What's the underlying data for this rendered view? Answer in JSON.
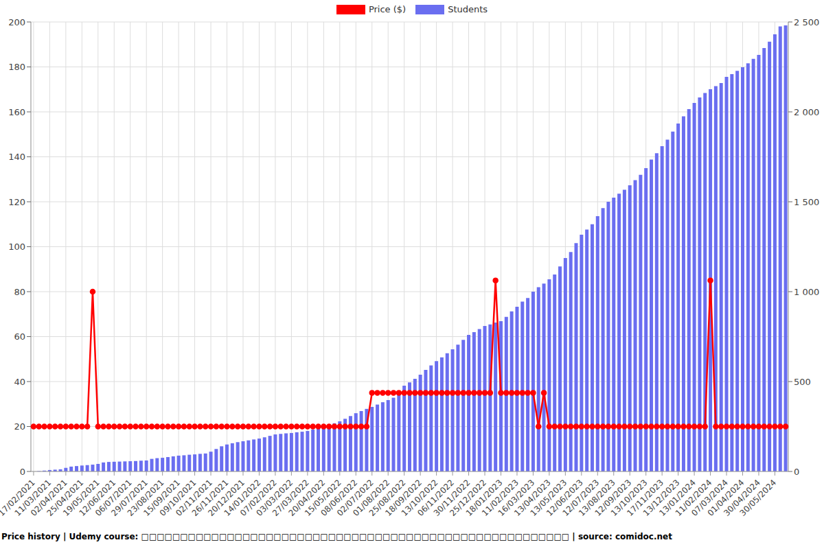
{
  "chart_data": {
    "type": "bar",
    "title": "Price history | Udemy course: □□□□□□□□□□□□□□□□□□□□□□□□□□□□□□□□□□□□□□□□□□□□□□□□□□□□□□□ | source: comidoc.net",
    "categories": [
      "17/02/2021",
      null,
      null,
      "11/03/2021",
      null,
      null,
      "02/04/2021",
      null,
      null,
      "25/04/2021",
      null,
      null,
      "19/05/2021",
      null,
      null,
      "12/06/2021",
      null,
      null,
      "06/07/2021",
      null,
      null,
      "29/07/2021",
      null,
      null,
      "23/08/2021",
      null,
      null,
      "15/09/2021",
      null,
      null,
      "09/10/2021",
      null,
      null,
      "02/11/2021",
      null,
      null,
      "26/11/2021",
      null,
      null,
      "20/12/2021",
      null,
      null,
      "14/01/2022",
      null,
      null,
      "07/02/2022",
      null,
      null,
      "03/03/2022",
      null,
      null,
      "27/03/2022",
      null,
      null,
      "20/04/2022",
      null,
      null,
      "15/05/2022",
      null,
      null,
      "08/06/2022",
      null,
      null,
      "02/07/2022",
      null,
      null,
      "01/08/2022",
      null,
      null,
      "25/08/2022",
      null,
      null,
      "18/09/2022",
      null,
      null,
      "13/10/2022",
      null,
      null,
      "06/11/2022",
      null,
      null,
      "30/11/2022",
      null,
      null,
      "25/12/2022",
      null,
      null,
      "18/01/2023",
      null,
      null,
      "11/02/2023",
      null,
      null,
      "16/03/2023",
      null,
      null,
      "13/04/2023",
      null,
      null,
      "13/05/2023",
      null,
      null,
      "12/06/2023",
      null,
      null,
      "12/07/2023",
      null,
      null,
      "13/08/2023",
      null,
      null,
      "12/09/2023",
      null,
      null,
      "13/10/2023",
      null,
      null,
      "17/11/2023",
      null,
      null,
      "13/12/2023",
      null,
      null,
      "13/01/2024",
      null,
      null,
      "11/02/2024",
      null,
      null,
      "07/03/2024",
      null,
      null,
      "01/04/2024",
      null,
      null,
      "30/04/2024",
      null,
      null,
      "30/05/2024",
      null,
      null
    ],
    "series": [
      {
        "name": "Price ($)",
        "type": "line",
        "color": "#ff0000",
        "marker": "circle",
        "values": [
          20,
          20,
          20,
          20,
          20,
          20,
          20,
          20,
          20,
          20,
          20,
          80,
          20,
          20,
          20,
          20,
          20,
          20,
          20,
          20,
          20,
          20,
          20,
          20,
          20,
          20,
          20,
          20,
          20,
          20,
          20,
          20,
          20,
          20,
          20,
          20,
          20,
          20,
          20,
          20,
          20,
          20,
          20,
          20,
          20,
          20,
          20,
          20,
          20,
          20,
          20,
          20,
          20,
          20,
          20,
          20,
          20,
          20,
          20,
          20,
          20,
          20,
          20,
          35,
          35,
          35,
          35,
          35,
          35,
          35,
          35,
          35,
          35,
          35,
          35,
          35,
          35,
          35,
          35,
          35,
          35,
          35,
          35,
          35,
          35,
          35,
          85,
          35,
          35,
          35,
          35,
          35,
          35,
          35,
          20,
          35,
          20,
          20,
          20,
          20,
          20,
          20,
          20,
          20,
          20,
          20,
          20,
          20,
          20,
          20,
          20,
          20,
          20,
          20,
          20,
          20,
          20,
          20,
          20,
          20,
          20,
          20,
          20,
          20,
          20,
          20,
          85,
          20,
          20,
          20,
          20,
          20,
          20,
          20,
          20,
          20,
          20,
          20,
          20,
          20,
          20
        ]
      },
      {
        "name": "Students",
        "type": "bar",
        "color": "#6a6ef0",
        "axis": "y2",
        "values": [
          0,
          2,
          5,
          8,
          10,
          12,
          20,
          27,
          30,
          33,
          35,
          38,
          42,
          50,
          53,
          54,
          55,
          56,
          57,
          58,
          60,
          61,
          70,
          74,
          76,
          80,
          84,
          88,
          90,
          93,
          95,
          98,
          100,
          110,
          125,
          140,
          150,
          157,
          163,
          168,
          173,
          178,
          183,
          190,
          198,
          206,
          209,
          212,
          214,
          218,
          221,
          225,
          233,
          240,
          248,
          258,
          268,
          279,
          293,
          308,
          324,
          336,
          348,
          359,
          372,
          385,
          397,
          410,
          440,
          477,
          495,
          515,
          538,
          565,
          590,
          614,
          635,
          657,
          679,
          705,
          732,
          760,
          775,
          792,
          809,
          818,
          828,
          836,
          860,
          890,
          916,
          945,
          965,
          1000,
          1025,
          1045,
          1069,
          1095,
          1140,
          1187,
          1220,
          1270,
          1317,
          1345,
          1375,
          1420,
          1465,
          1500,
          1523,
          1545,
          1567,
          1592,
          1620,
          1650,
          1687,
          1735,
          1770,
          1809,
          1845,
          1890,
          1935,
          1975,
          2015,
          2050,
          2080,
          2105,
          2126,
          2143,
          2160,
          2195,
          2210,
          2228,
          2248,
          2270,
          2295,
          2317,
          2355,
          2390,
          2431,
          2475,
          2481
        ]
      }
    ],
    "ylim": [
      0,
      200
    ],
    "yticks": [
      0,
      20,
      40,
      60,
      80,
      100,
      120,
      140,
      160,
      180,
      200
    ],
    "y2lim": [
      0,
      2500
    ],
    "y2ticks": [
      0,
      500,
      {
        "value": 1000,
        "label": "1 000"
      },
      {
        "value": 1500,
        "label": "1 500"
      },
      {
        "value": 2000,
        "label": "2 000"
      },
      {
        "value": 2500,
        "label": "2 500"
      }
    ],
    "grid": true,
    "legend": "top"
  }
}
